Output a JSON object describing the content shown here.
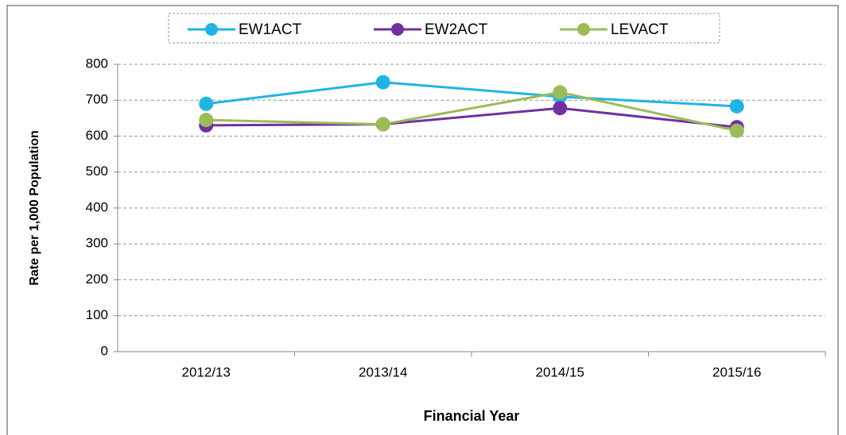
{
  "chart_data": {
    "type": "line",
    "x_label": "Financial Year",
    "y_label": "Rate per 1,000 Population",
    "categories": [
      "2012/13",
      "2013/14",
      "2014/15",
      "2015/16"
    ],
    "series": [
      {
        "name": "EW1ACT",
        "color": "#1fb4e6",
        "values": [
          690,
          750,
          710,
          683
        ]
      },
      {
        "name": "EW2ACT",
        "color": "#7030a0",
        "values": [
          630,
          633,
          678,
          625
        ]
      },
      {
        "name": "LEVACT",
        "color": "#9bbb59",
        "values": [
          645,
          633,
          722,
          615
        ]
      }
    ],
    "ylim": [
      0,
      800
    ],
    "yticks": [
      0,
      100,
      200,
      300,
      400,
      500,
      600,
      700,
      800
    ],
    "grid": true,
    "legend": "top"
  }
}
